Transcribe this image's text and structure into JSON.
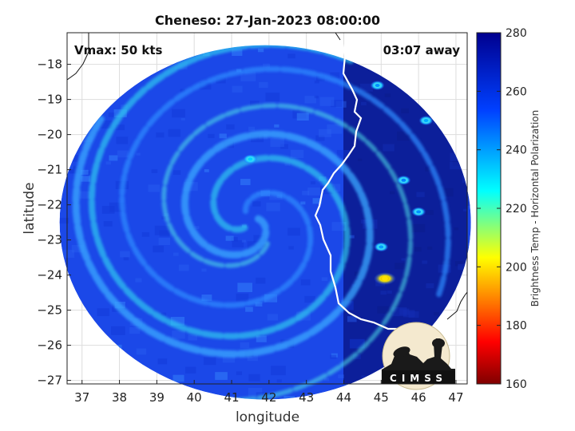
{
  "chart_data": {
    "type": "heatmap",
    "title": "Cheneso: 27-Jan-2023 08:00:00",
    "xlabel": "longitude",
    "ylabel": "latitude",
    "xlim": [
      36.6,
      47.3
    ],
    "ylim": [
      -27.1,
      -17.1
    ],
    "xticks": [
      37,
      38,
      39,
      40,
      41,
      42,
      43,
      44,
      45,
      46,
      47
    ],
    "yticks": [
      -18,
      -19,
      -20,
      -21,
      -22,
      -23,
      -24,
      -25,
      -26,
      -27
    ],
    "grid": true,
    "annotations": {
      "vmax": "Vmax: 50 kts",
      "time_offset": "03:07 away"
    },
    "colorbar": {
      "label": "Brightness Temp - Horizontal Polarization",
      "min": 160,
      "max": 280,
      "ticks": [
        280,
        260,
        240,
        220,
        200,
        180,
        160
      ]
    },
    "storm_center": [
      41.5,
      -22.4
    ],
    "swath": {
      "center": [
        41.9,
        -22.5
      ],
      "radius_deg_lon": 5.5
    },
    "warm_cells": [
      {
        "lon": 45.1,
        "lat": -24.1,
        "value": 200
      },
      {
        "lon": 41.5,
        "lat": -20.7,
        "value": 232
      },
      {
        "lon": 45.0,
        "lat": -23.2,
        "value": 240
      },
      {
        "lon": 46.2,
        "lat": -19.6,
        "value": 238
      },
      {
        "lon": 44.9,
        "lat": -18.6,
        "value": 242
      },
      {
        "lon": 46.0,
        "lat": -22.2,
        "value": 242
      },
      {
        "lon": 45.6,
        "lat": -21.3,
        "value": 244
      }
    ],
    "logo_text": "CIMSS"
  }
}
